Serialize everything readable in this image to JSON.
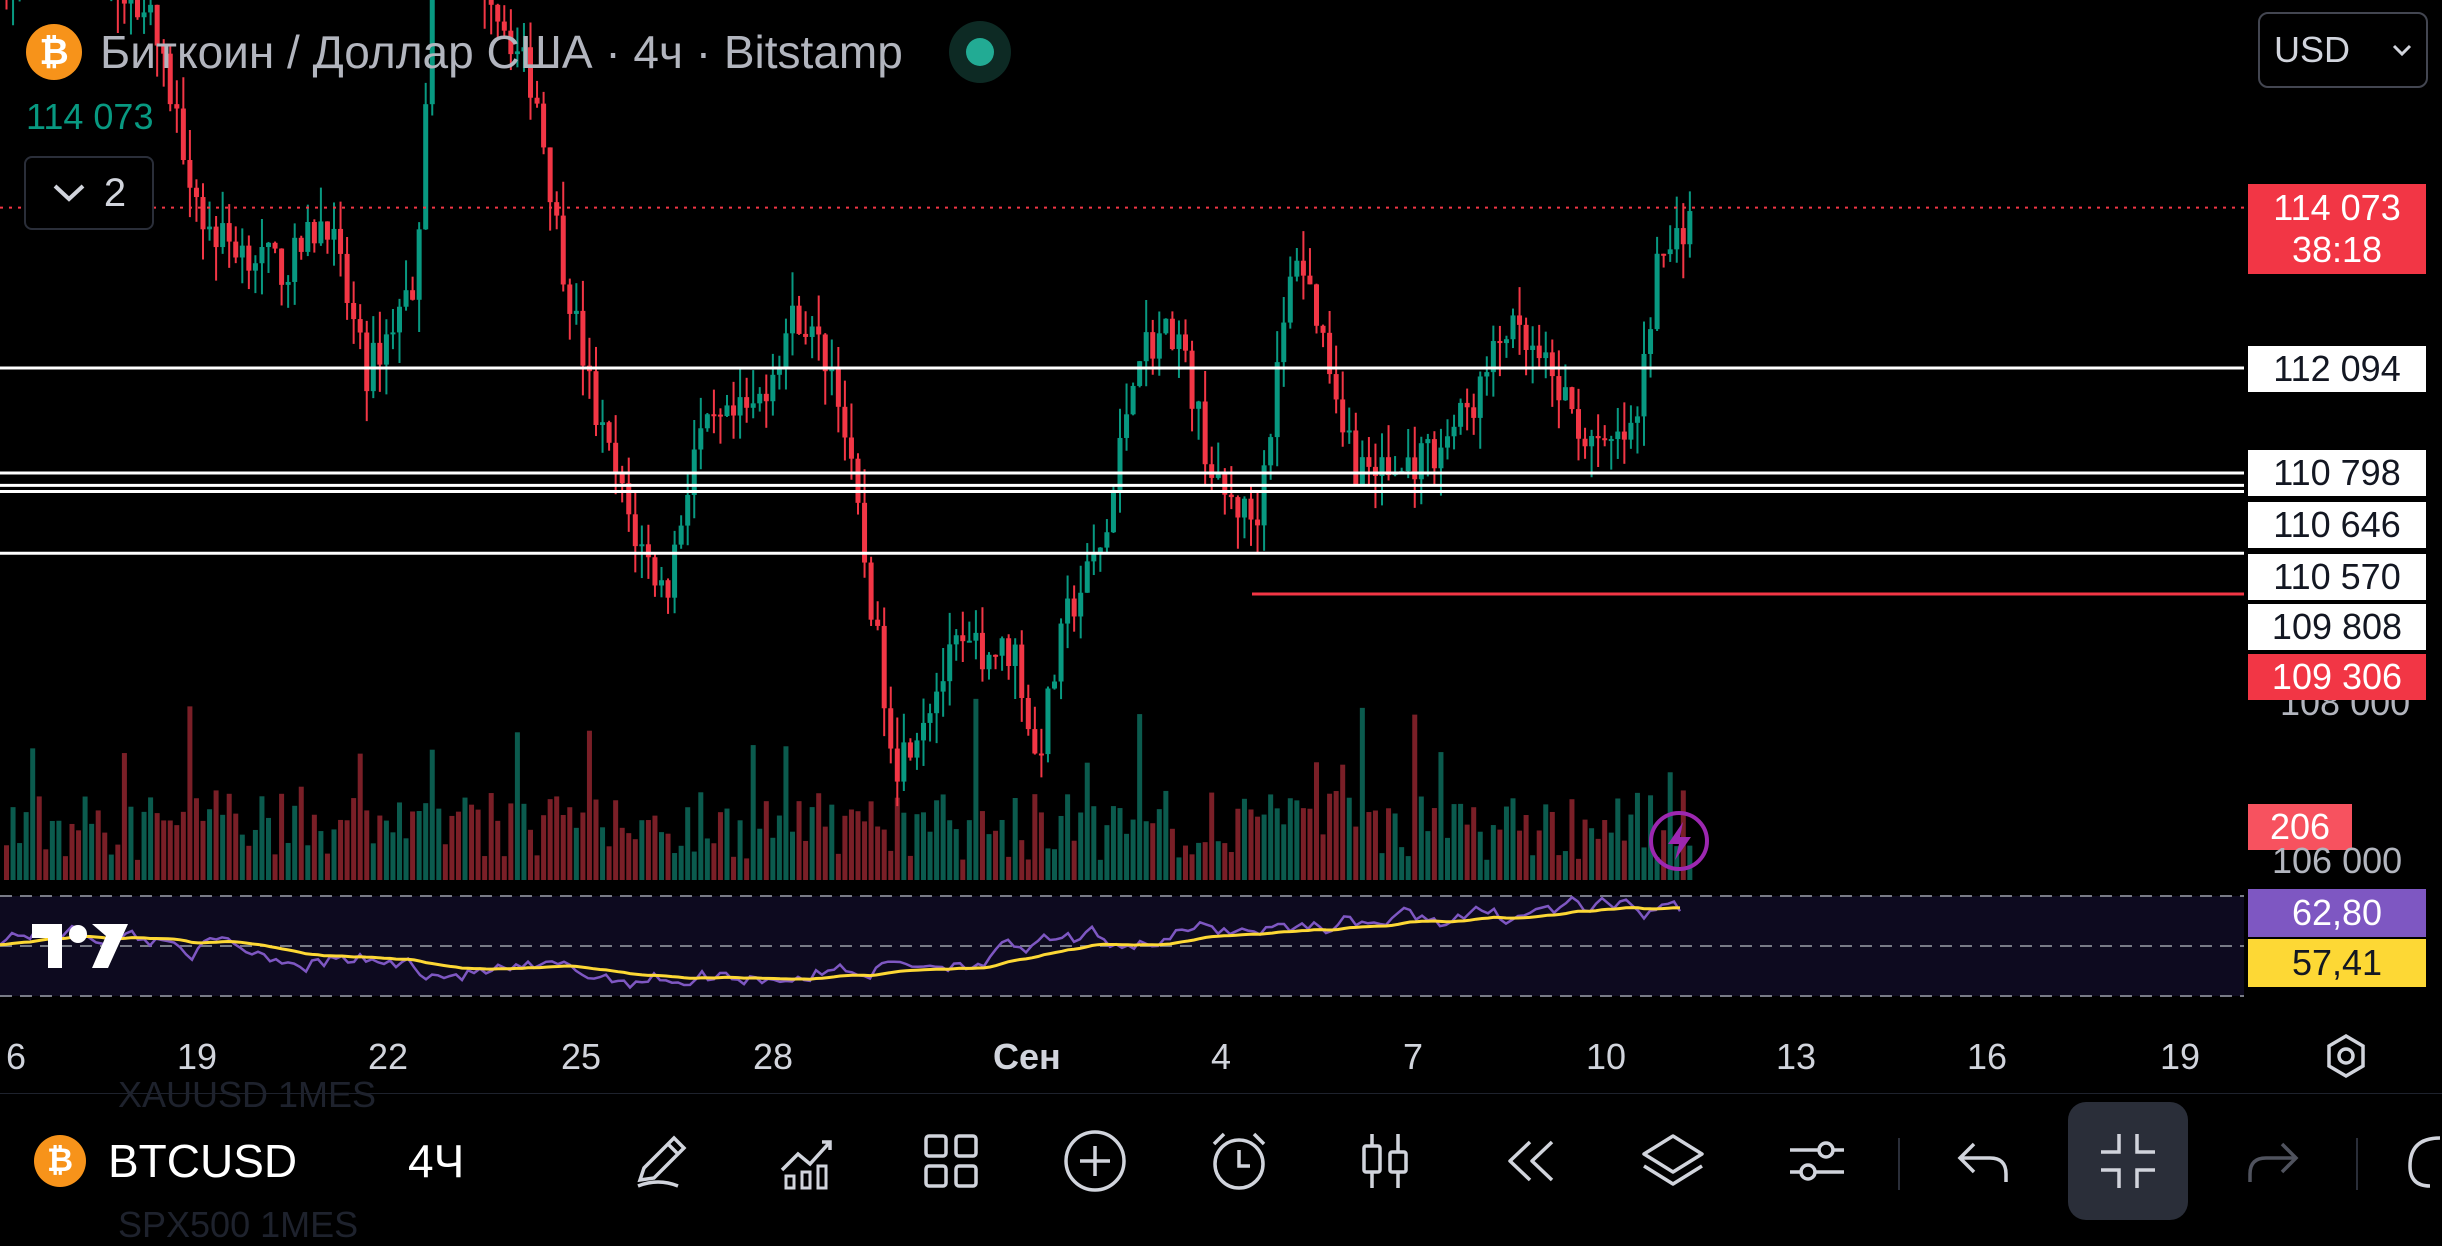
{
  "header": {
    "symbol_title": "Биткоин / Доллар США · 4ч · Bitstamp",
    "coin_glyph": "₿",
    "current_price": "114 073",
    "collapse_count": "2",
    "currency": "USD"
  },
  "price_axis": {
    "labels": [
      {
        "value": "112 094",
        "style": "white"
      },
      {
        "value": "110 798",
        "style": "white"
      },
      {
        "value": "110 646",
        "style": "white"
      },
      {
        "value": "110 570",
        "style": "white"
      },
      {
        "value": "109 808",
        "style": "white"
      },
      {
        "value": "109 306",
        "style": "red"
      }
    ],
    "current": {
      "price": "114 073",
      "countdown": "38:18"
    },
    "volume_value": "206",
    "tick_106": "106 000",
    "tick_108": "108 000",
    "rsi_value": "62,80",
    "rsi_ma_value": "57,41"
  },
  "x_axis": {
    "labels": [
      "6",
      "19",
      "22",
      "25",
      "28",
      "Сен",
      "4",
      "7",
      "10",
      "13",
      "16",
      "19"
    ]
  },
  "toolbar": {
    "symbol": "BTCUSD",
    "interval": "4Ч",
    "ghost_top": "XAUUSD  1MES",
    "ghost_bottom": "SPX500  1MES"
  },
  "colors": {
    "up": "#089981",
    "down": "#f23645",
    "rsi": "#7e57c2",
    "rsi_ma": "#fdd835"
  },
  "chart_data": {
    "type": "candlestick",
    "horizontal_levels": [
      112094,
      110798,
      110646,
      110570,
      109808
    ],
    "marked_low": 109306,
    "current_price": 114073,
    "rsi": {
      "value": 62.8,
      "ma": 57.41
    }
  }
}
